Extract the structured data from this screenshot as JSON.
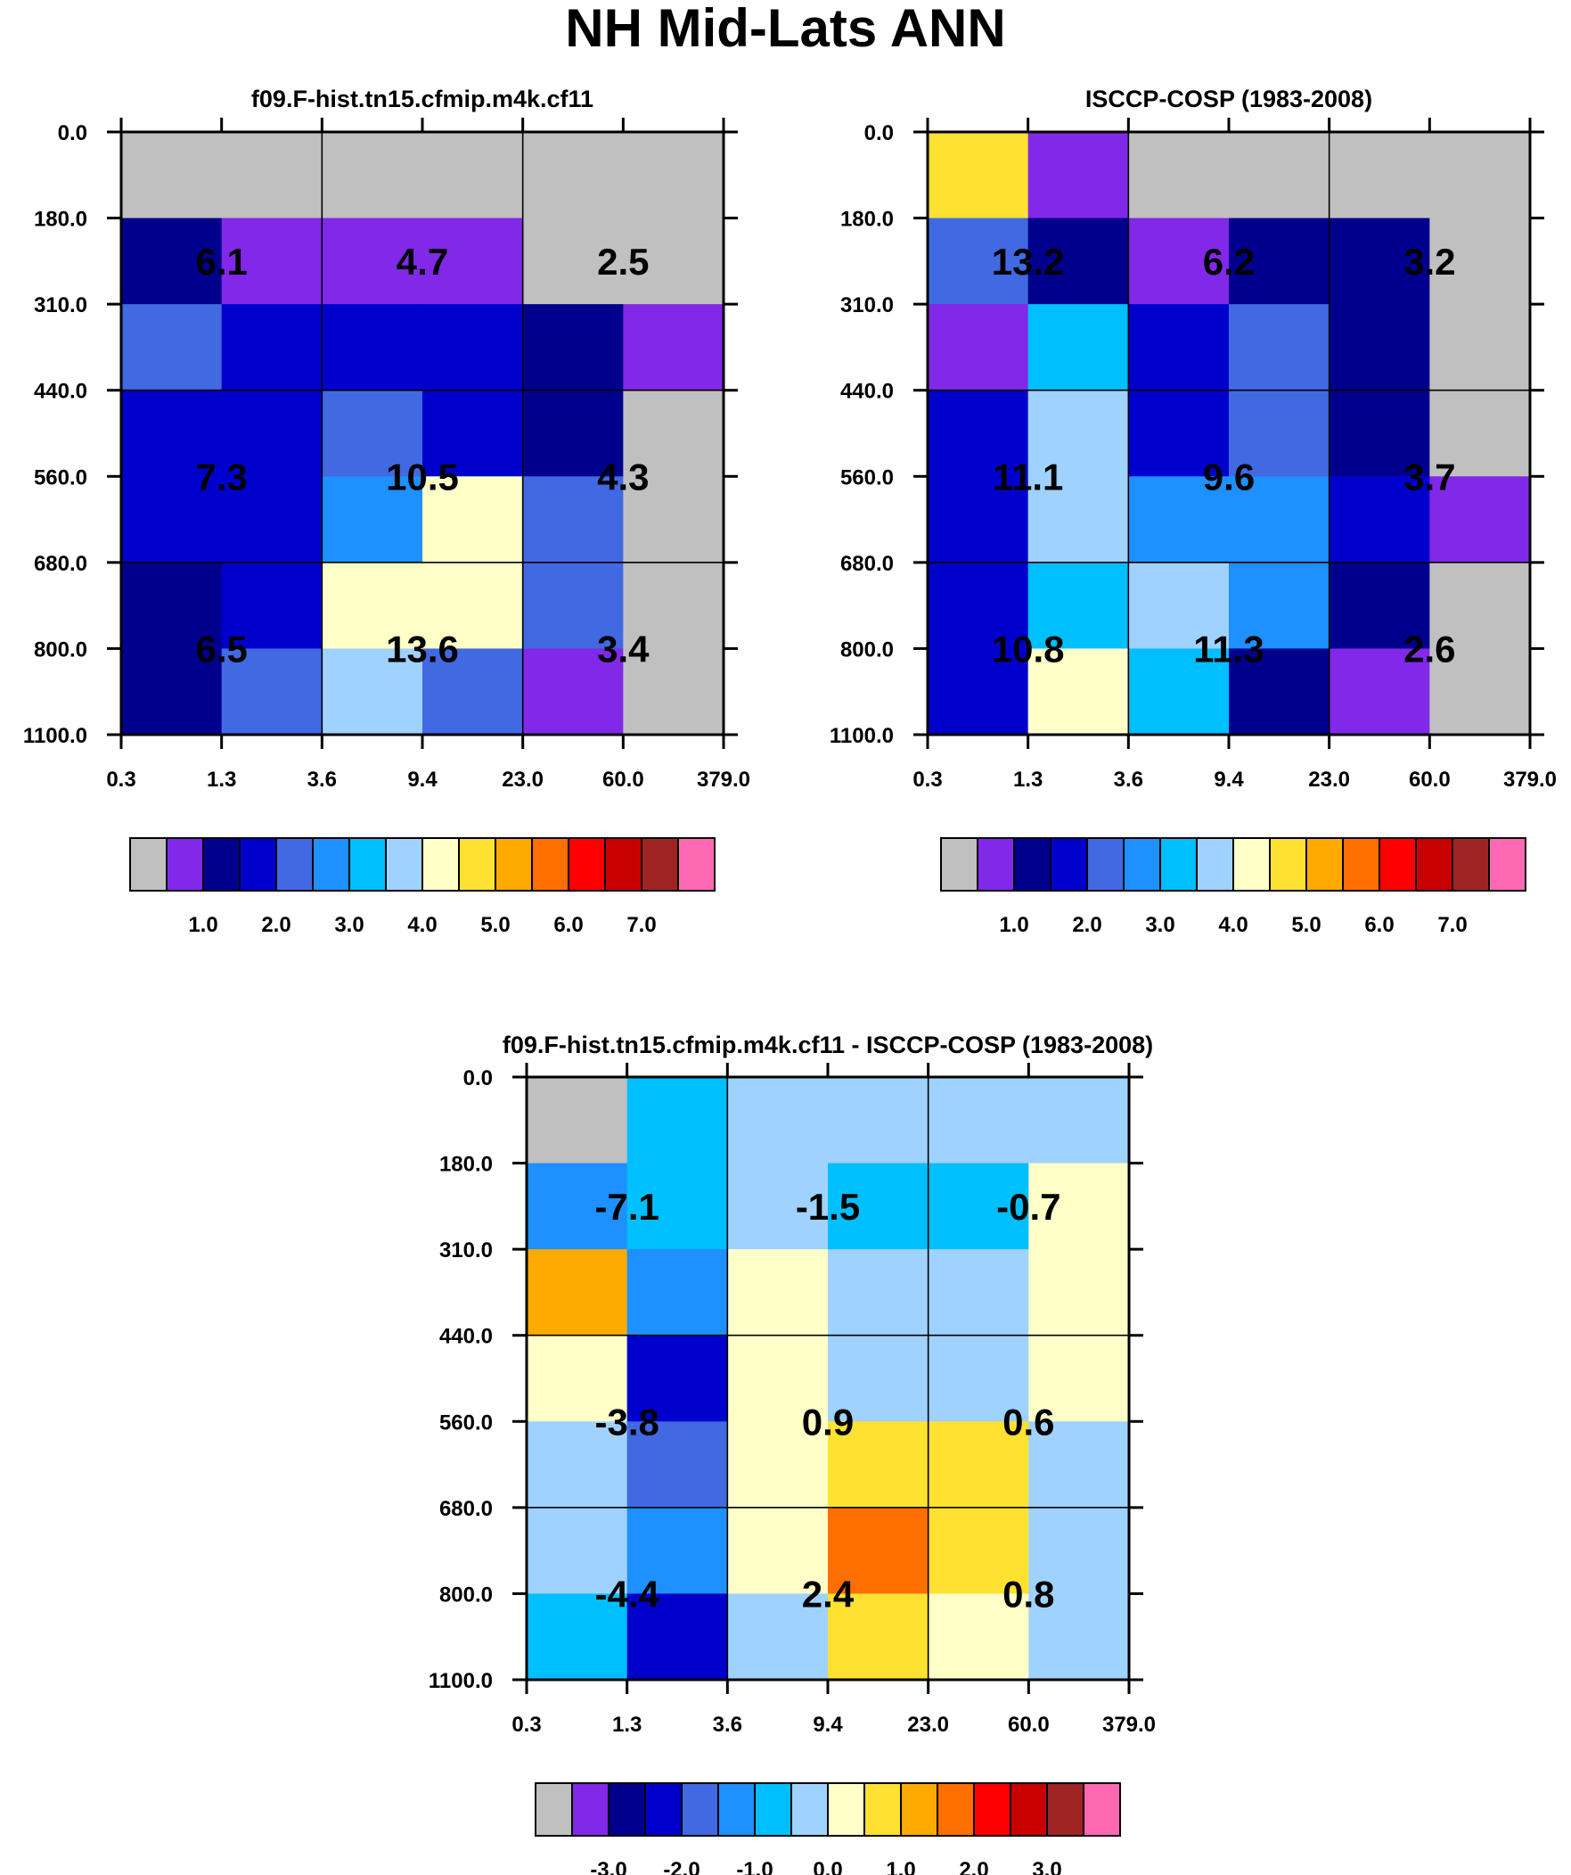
{
  "title": "NH Mid-Lats ANN",
  "chart_data": [
    {
      "type": "heatmap",
      "id": "model",
      "title": "f09.F-hist.tn15.cfmip.m4k.cf11",
      "x_tick_labels": [
        "0.3",
        "1.3",
        "3.6",
        "9.4",
        "23.0",
        "60.0",
        "379.0"
      ],
      "y_tick_labels": [
        "0.0",
        "180.0",
        "310.0",
        "440.0",
        "560.0",
        "680.0",
        "800.0",
        "1100.0"
      ],
      "cells": [
        [
          0,
          0,
          0,
          0,
          0,
          0
        ],
        [
          2,
          1,
          1,
          1,
          0,
          0
        ],
        [
          4,
          3,
          3,
          3,
          2,
          1
        ],
        [
          3,
          3,
          4,
          3,
          2,
          0
        ],
        [
          3,
          3,
          5,
          8,
          4,
          0
        ],
        [
          2,
          3,
          8,
          8,
          4,
          0
        ],
        [
          2,
          4,
          7,
          4,
          1,
          0
        ]
      ],
      "box_values": [
        [
          "6.1",
          "4.7",
          "2.5"
        ],
        [
          "7.3",
          "10.5",
          "4.3"
        ],
        [
          "6.5",
          "13.6",
          "3.4"
        ]
      ],
      "legend_labels": [
        "1.0",
        "2.0",
        "3.0",
        "4.0",
        "5.0",
        "6.0",
        "7.0"
      ]
    },
    {
      "type": "heatmap",
      "id": "obs",
      "title": "ISCCP-COSP (1983-2008)",
      "x_tick_labels": [
        "0.3",
        "1.3",
        "3.6",
        "9.4",
        "23.0",
        "60.0",
        "379.0"
      ],
      "y_tick_labels": [
        "0.0",
        "180.0",
        "310.0",
        "440.0",
        "560.0",
        "680.0",
        "800.0",
        "1100.0"
      ],
      "cells": [
        [
          9,
          1,
          0,
          0,
          0,
          0
        ],
        [
          4,
          2,
          1,
          2,
          2,
          0
        ],
        [
          1,
          6,
          3,
          4,
          2,
          0
        ],
        [
          3,
          7,
          3,
          4,
          2,
          0
        ],
        [
          3,
          7,
          5,
          5,
          3,
          1
        ],
        [
          3,
          6,
          7,
          5,
          2,
          0
        ],
        [
          3,
          8,
          6,
          2,
          1,
          0
        ]
      ],
      "box_values": [
        [
          "13.2",
          "6.2",
          "3.2"
        ],
        [
          "11.1",
          "9.6",
          "3.7"
        ],
        [
          "10.8",
          "11.3",
          "2.6"
        ]
      ],
      "legend_labels": [
        "1.0",
        "2.0",
        "3.0",
        "4.0",
        "5.0",
        "6.0",
        "7.0"
      ]
    },
    {
      "type": "heatmap",
      "id": "diff",
      "title": "f09.F-hist.tn15.cfmip.m4k.cf11 - ISCCP-COSP (1983-2008)",
      "x_tick_labels": [
        "0.3",
        "1.3",
        "3.6",
        "9.4",
        "23.0",
        "60.0",
        "379.0"
      ],
      "y_tick_labels": [
        "0.0",
        "180.0",
        "310.0",
        "440.0",
        "560.0",
        "680.0",
        "800.0",
        "1100.0"
      ],
      "cells": [
        [
          0,
          6,
          7,
          7,
          7,
          7
        ],
        [
          5,
          6,
          7,
          6,
          6,
          8
        ],
        [
          10,
          5,
          8,
          7,
          7,
          8
        ],
        [
          8,
          3,
          8,
          7,
          7,
          8
        ],
        [
          7,
          4,
          8,
          9,
          9,
          7
        ],
        [
          7,
          5,
          8,
          11,
          9,
          7
        ],
        [
          6,
          3,
          7,
          9,
          8,
          7
        ]
      ],
      "box_values": [
        [
          "-7.1",
          "-1.5",
          "-0.7"
        ],
        [
          "-3.8",
          "0.9",
          "0.6"
        ],
        [
          "-4.4",
          "2.4",
          "0.8"
        ]
      ],
      "legend_labels": [
        "-3.0",
        "-2.0",
        "-1.0",
        "0.0",
        "1.0",
        "2.0",
        "3.0"
      ]
    }
  ],
  "colors": [
    "#c0c0c0",
    "#8228e8",
    "#00008c",
    "#0000cd",
    "#4169e1",
    "#1e90ff",
    "#00bfff",
    "#a0d2ff",
    "#ffffc8",
    "#ffe132",
    "#ffaa00",
    "#ff6e00",
    "#ff0000",
    "#c80000",
    "#a02323",
    "#ff69b4"
  ]
}
